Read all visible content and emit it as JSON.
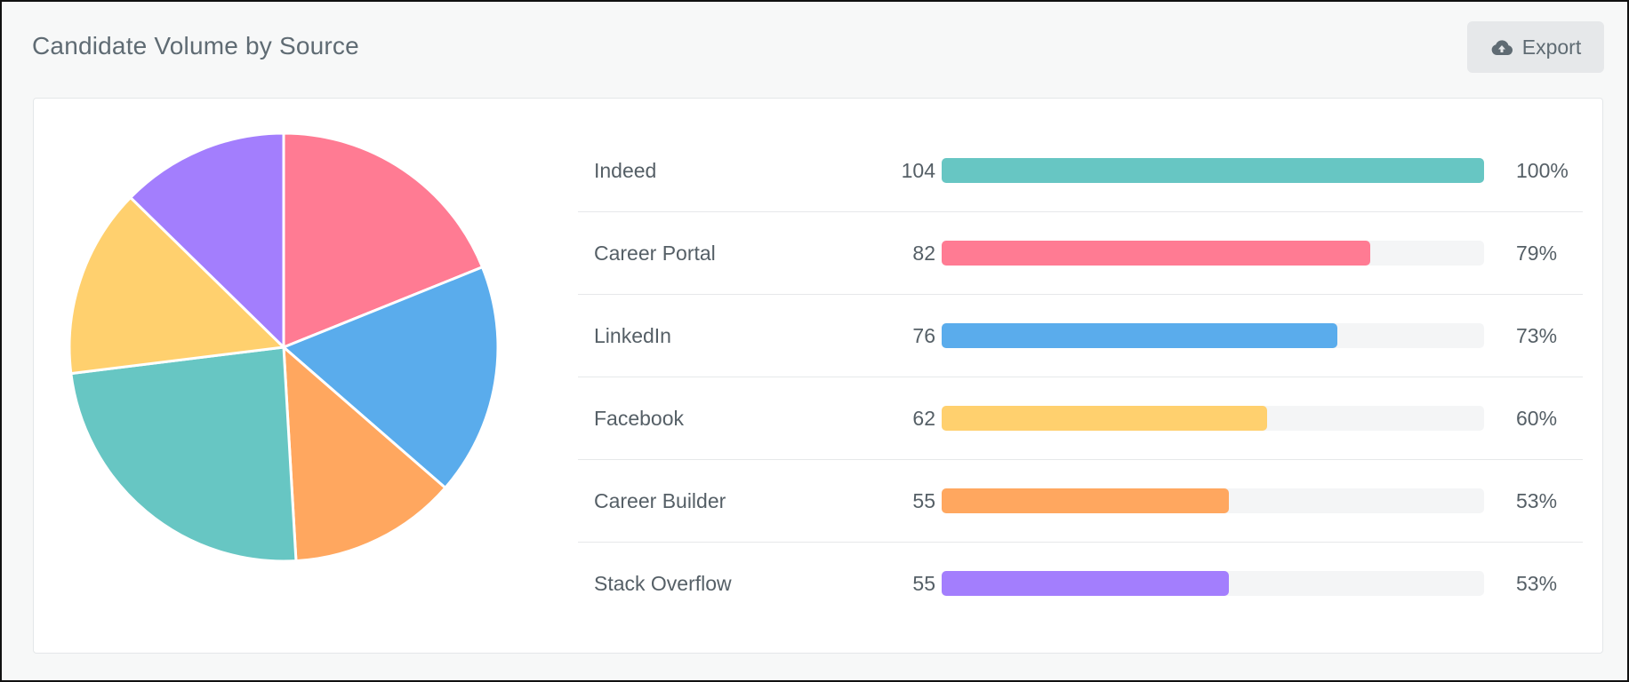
{
  "header": {
    "title": "Candidate Volume by Source",
    "export_label": "Export",
    "export_icon": "cloud-upload-icon"
  },
  "chart_data": [
    {
      "type": "pie",
      "categories": [
        "Indeed",
        "Career Portal",
        "LinkedIn",
        "Facebook",
        "Career Builder",
        "Stack Overflow"
      ],
      "values": [
        104,
        82,
        76,
        62,
        55,
        55
      ],
      "colors": [
        "#67c6c3",
        "#ff7b93",
        "#5aacec",
        "#ffd06e",
        "#ffa75f",
        "#a37efd"
      ],
      "slice_order": [
        "Career Portal",
        "LinkedIn",
        "Career Builder",
        "Indeed",
        "Facebook",
        "Stack Overflow"
      ],
      "start": "12 o'clock, clockwise"
    },
    {
      "type": "bar",
      "orientation": "horizontal",
      "categories": [
        "Indeed",
        "Career Portal",
        "LinkedIn",
        "Facebook",
        "Career Builder",
        "Stack Overflow"
      ],
      "values": [
        104,
        82,
        76,
        62,
        55,
        55
      ],
      "percent_labels": [
        "100%",
        "79%",
        "73%",
        "60%",
        "53%",
        "53%"
      ],
      "percent": [
        100,
        79,
        73,
        60,
        53,
        53
      ],
      "colors": [
        "#67c6c3",
        "#ff7b93",
        "#5aacec",
        "#ffd06e",
        "#ffa75f",
        "#a37efd"
      ],
      "track_color": "#f4f5f6",
      "xlim": [
        0,
        100
      ]
    }
  ]
}
